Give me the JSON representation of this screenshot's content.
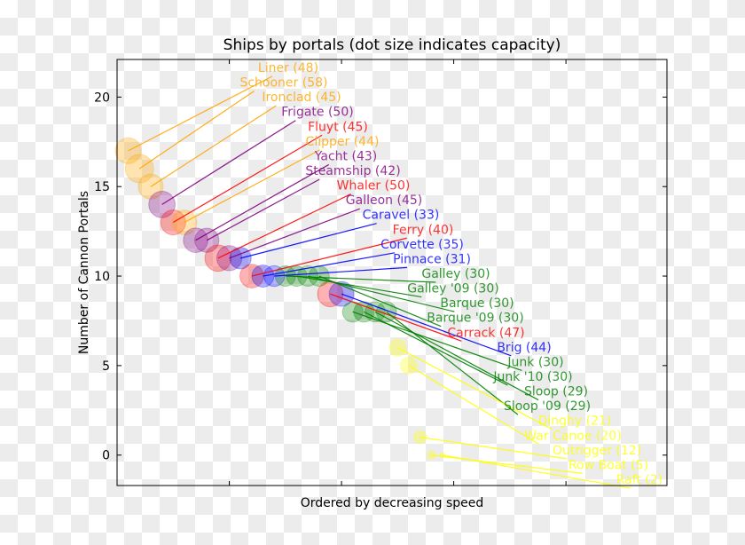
{
  "chart_data": {
    "type": "scatter",
    "title": "Ships by portals (dot size indicates capacity)",
    "xlabel": "Ordered by decreasing speed",
    "ylabel": "Number of Cannon Portals",
    "xlim": [
      0,
      49
    ],
    "ylim": [
      -1.7,
      22.1
    ],
    "xticks": [
      10,
      20,
      30,
      40
    ],
    "xtick_labels_visible": false,
    "yticks": [
      0,
      5,
      10,
      15,
      20
    ],
    "grid": false,
    "point_alpha": 0.3,
    "colors": {
      "orange": "#FFA500",
      "purple": "#800080",
      "red": "#FF0000",
      "blue": "#0000FF",
      "green": "#008000",
      "yellow": "#FFFF00"
    },
    "points": [
      {
        "name": "Liner",
        "x": 1,
        "portals": 17,
        "capacity": 48,
        "color": "orange"
      },
      {
        "name": "Schooner",
        "x": 2,
        "portals": 16,
        "capacity": 58,
        "color": "orange"
      },
      {
        "name": "Ironclad",
        "x": 3,
        "portals": 15,
        "capacity": 45,
        "color": "orange"
      },
      {
        "name": "Frigate",
        "x": 4,
        "portals": 14,
        "capacity": 50,
        "color": "purple"
      },
      {
        "name": "Fluyt",
        "x": 5,
        "portals": 13,
        "capacity": 45,
        "color": "red"
      },
      {
        "name": "Clipper",
        "x": 6,
        "portals": 13,
        "capacity": 44,
        "color": "orange"
      },
      {
        "name": "Yacht",
        "x": 7,
        "portals": 12,
        "capacity": 43,
        "color": "purple"
      },
      {
        "name": "Steamship",
        "x": 8,
        "portals": 12,
        "capacity": 42,
        "color": "purple"
      },
      {
        "name": "Whaler",
        "x": 9,
        "portals": 11,
        "capacity": 50,
        "color": "red"
      },
      {
        "name": "Galleon",
        "x": 10,
        "portals": 11,
        "capacity": 45,
        "color": "purple"
      },
      {
        "name": "Caravel",
        "x": 11,
        "portals": 11,
        "capacity": 33,
        "color": "blue"
      },
      {
        "name": "Ferry",
        "x": 12,
        "portals": 10,
        "capacity": 40,
        "color": "red"
      },
      {
        "name": "Corvette",
        "x": 13,
        "portals": 10,
        "capacity": 35,
        "color": "blue"
      },
      {
        "name": "Pinnace",
        "x": 14,
        "portals": 10,
        "capacity": 31,
        "color": "blue"
      },
      {
        "name": "Galley",
        "x": 15,
        "portals": 10,
        "capacity": 30,
        "color": "green"
      },
      {
        "name": "Galley '09",
        "x": 16,
        "portals": 10,
        "capacity": 30,
        "color": "green"
      },
      {
        "name": "Barque",
        "x": 17,
        "portals": 10,
        "capacity": 30,
        "color": "green"
      },
      {
        "name": "Barque '09",
        "x": 18,
        "portals": 10,
        "capacity": 30,
        "color": "green"
      },
      {
        "name": "Carrack",
        "x": 19,
        "portals": 9,
        "capacity": 47,
        "color": "red"
      },
      {
        "name": "Brig",
        "x": 20,
        "portals": 9,
        "capacity": 44,
        "color": "blue"
      },
      {
        "name": "Junk",
        "x": 21,
        "portals": 8,
        "capacity": 30,
        "color": "green"
      },
      {
        "name": "Junk '10",
        "x": 22,
        "portals": 8,
        "capacity": 30,
        "color": "green"
      },
      {
        "name": "Sloop",
        "x": 23,
        "portals": 8,
        "capacity": 29,
        "color": "green"
      },
      {
        "name": "Sloop '09",
        "x": 24,
        "portals": 8,
        "capacity": 29,
        "color": "green"
      },
      {
        "name": "Dinghy",
        "x": 25,
        "portals": 6,
        "capacity": 21,
        "color": "yellow"
      },
      {
        "name": "War Canoe",
        "x": 26,
        "portals": 5,
        "capacity": 20,
        "color": "yellow"
      },
      {
        "name": "Outrigger",
        "x": 27,
        "portals": 1,
        "capacity": 12,
        "color": "yellow"
      },
      {
        "name": "Row Boat",
        "x": 28,
        "portals": 0,
        "capacity": 5,
        "color": "yellow"
      },
      {
        "name": "Raft",
        "x": 29,
        "portals": 0,
        "capacity": 2,
        "color": "yellow"
      }
    ]
  }
}
